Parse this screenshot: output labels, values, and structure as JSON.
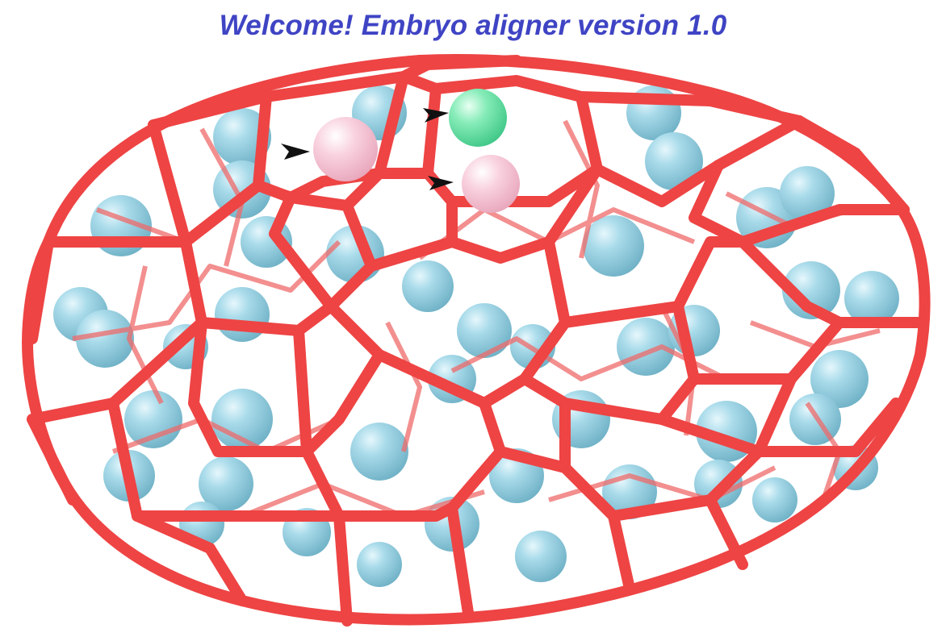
{
  "title": "Welcome! Embryo aligner version 1.0",
  "colors": {
    "title": "#3f44c4",
    "mesh": "#ee4848",
    "mesh_dark": "#c82a2a",
    "nucleus": "#9fd6e6",
    "nucleus_shade": "#6fb4c9",
    "highlight_pink": "#f9c9d8",
    "highlight_green": "#7ee8b0",
    "arrow": "#111111"
  },
  "scene": {
    "mesh_icon": "cell-boundary-mesh",
    "nucleus_icon": "sphere",
    "marker_icon": "arrowhead-marker",
    "highlighted_cells": [
      "pink",
      "green",
      "pink"
    ]
  }
}
